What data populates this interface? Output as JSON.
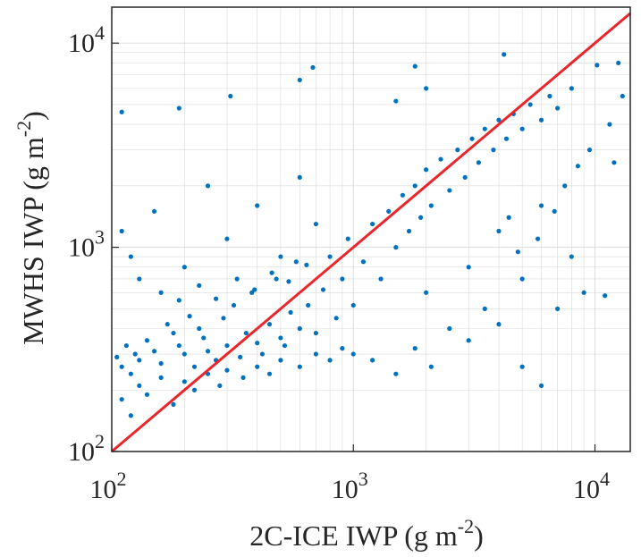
{
  "chart_data": {
    "type": "scatter",
    "title": "",
    "xlabel": "2C-ICE IWP (g m",
    "xlabel_sup": "-2",
    "xlabel_tail": ")",
    "ylabel": "MWHS IWP (g m",
    "ylabel_sup": "-2",
    "ylabel_tail": ")",
    "xscale": "log",
    "yscale": "log",
    "xlim": [
      100,
      14000
    ],
    "ylim": [
      100,
      15000
    ],
    "xticks": [
      {
        "value": 100,
        "base": "10",
        "exp": "2"
      },
      {
        "value": 1000,
        "base": "10",
        "exp": "3"
      },
      {
        "value": 10000,
        "base": "10",
        "exp": "4"
      }
    ],
    "yticks": [
      {
        "value": 100,
        "base": "10",
        "exp": "2"
      },
      {
        "value": 1000,
        "base": "10",
        "exp": "3"
      },
      {
        "value": 10000,
        "base": "10",
        "exp": "4"
      }
    ],
    "grid": true,
    "legend": "none",
    "colors": {
      "points": "#0072BD",
      "line": "#e8262b",
      "grid": "#d9d9d9",
      "axis": "#262626"
    },
    "series": [
      {
        "type": "scatter",
        "values": [
          [
            105,
            290
          ],
          [
            110,
            260
          ],
          [
            115,
            330
          ],
          [
            120,
            240
          ],
          [
            125,
            300
          ],
          [
            130,
            280
          ],
          [
            140,
            350
          ],
          [
            150,
            310
          ],
          [
            160,
            270
          ],
          [
            170,
            420
          ],
          [
            180,
            380
          ],
          [
            190,
            330
          ],
          [
            200,
            300
          ],
          [
            210,
            460
          ],
          [
            220,
            260
          ],
          [
            230,
            400
          ],
          [
            240,
            360
          ],
          [
            250,
            310
          ],
          [
            270,
            280
          ],
          [
            290,
            450
          ],
          [
            300,
            330
          ],
          [
            320,
            520
          ],
          [
            340,
            290
          ],
          [
            360,
            380
          ],
          [
            380,
            600
          ],
          [
            400,
            340
          ],
          [
            420,
            300
          ],
          [
            450,
            420
          ],
          [
            480,
            700
          ],
          [
            500,
            360
          ],
          [
            520,
            330
          ],
          [
            550,
            480
          ],
          [
            580,
            850
          ],
          [
            600,
            400
          ],
          [
            650,
            520
          ],
          [
            700,
            380
          ],
          [
            750,
            620
          ],
          [
            800,
            900
          ],
          [
            850,
            450
          ],
          [
            900,
            700
          ],
          [
            950,
            1100
          ],
          [
            1000,
            520
          ],
          [
            1100,
            850
          ],
          [
            1200,
            1300
          ],
          [
            1300,
            700
          ],
          [
            1400,
            1500
          ],
          [
            1500,
            1000
          ],
          [
            1600,
            1800
          ],
          [
            1700,
            1200
          ],
          [
            1800,
            2000
          ],
          [
            1900,
            1400
          ],
          [
            2000,
            2400
          ],
          [
            2100,
            1600
          ],
          [
            2300,
            2700
          ],
          [
            2500,
            1900
          ],
          [
            2700,
            3000
          ],
          [
            2900,
            2200
          ],
          [
            3100,
            3400
          ],
          [
            3300,
            2600
          ],
          [
            3500,
            3800
          ],
          [
            3800,
            3000
          ],
          [
            4000,
            4200
          ],
          [
            4300,
            3400
          ],
          [
            4600,
            4500
          ],
          [
            5000,
            3800
          ],
          [
            5400,
            5000
          ],
          [
            6000,
            4200
          ],
          [
            6500,
            5500
          ],
          [
            7000,
            4800
          ],
          [
            8000,
            6000
          ],
          [
            110,
            180
          ],
          [
            120,
            150
          ],
          [
            130,
            210
          ],
          [
            140,
            190
          ],
          [
            160,
            230
          ],
          [
            180,
            170
          ],
          [
            200,
            220
          ],
          [
            220,
            200
          ],
          [
            250,
            240
          ],
          [
            280,
            210
          ],
          [
            300,
            250
          ],
          [
            350,
            230
          ],
          [
            400,
            260
          ],
          [
            450,
            240
          ],
          [
            500,
            280
          ],
          [
            600,
            260
          ],
          [
            700,
            300
          ],
          [
            800,
            280
          ],
          [
            900,
            320
          ],
          [
            1000,
            300
          ],
          [
            110,
            1200
          ],
          [
            120,
            900
          ],
          [
            150,
            1500
          ],
          [
            200,
            800
          ],
          [
            250,
            2000
          ],
          [
            300,
            1100
          ],
          [
            400,
            1600
          ],
          [
            500,
            900
          ],
          [
            600,
            2200
          ],
          [
            700,
            1300
          ],
          [
            110,
            4600
          ],
          [
            190,
            4800
          ],
          [
            310,
            5500
          ],
          [
            600,
            6600
          ],
          [
            680,
            7600
          ],
          [
            1500,
            5200
          ],
          [
            1800,
            7700
          ],
          [
            2000,
            6000
          ],
          [
            4200,
            8800
          ],
          [
            10200,
            7800
          ],
          [
            1200,
            280
          ],
          [
            1500,
            240
          ],
          [
            1800,
            320
          ],
          [
            2100,
            260
          ],
          [
            2500,
            400
          ],
          [
            3000,
            350
          ],
          [
            3500,
            500
          ],
          [
            4000,
            420
          ],
          [
            5000,
            260
          ],
          [
            6000,
            210
          ],
          [
            2000,
            600
          ],
          [
            3000,
            800
          ],
          [
            4000,
            1200
          ],
          [
            5000,
            700
          ],
          [
            6000,
            1600
          ],
          [
            7000,
            500
          ],
          [
            8000,
            900
          ],
          [
            9000,
            600
          ],
          [
            11000,
            580
          ],
          [
            12000,
            2600
          ],
          [
            130,
            700
          ],
          [
            160,
            600
          ],
          [
            190,
            550
          ],
          [
            230,
            650
          ],
          [
            270,
            560
          ],
          [
            330,
            700
          ],
          [
            390,
            620
          ],
          [
            460,
            750
          ],
          [
            540,
            680
          ],
          [
            640,
            820
          ],
          [
            12500,
            8000
          ],
          [
            13000,
            5500
          ],
          [
            11500,
            4000
          ],
          [
            9500,
            3000
          ],
          [
            8500,
            2500
          ],
          [
            7500,
            2000
          ],
          [
            6800,
            1500
          ],
          [
            5800,
            1100
          ],
          [
            4800,
            950
          ],
          [
            4400,
            1400
          ]
        ]
      },
      {
        "type": "line",
        "name": "",
        "x": [
          100,
          14000
        ],
        "y": [
          100,
          14000
        ]
      }
    ]
  }
}
